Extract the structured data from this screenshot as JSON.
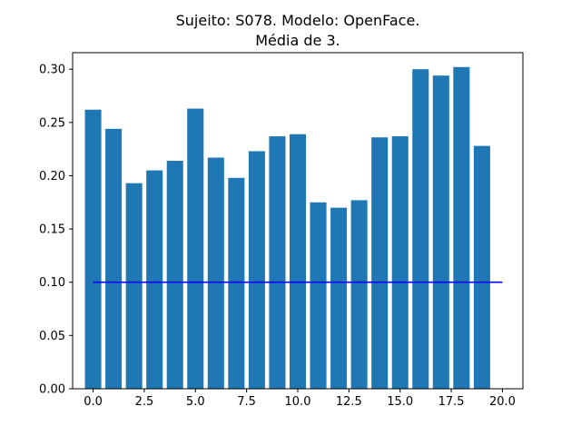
{
  "chart_data": {
    "type": "bar",
    "title": "Sujeito: S078. Modelo: OpenFace.",
    "subtitle": "Média de 3.",
    "xlabel": "",
    "ylabel": "",
    "x": [
      0,
      1,
      2,
      3,
      4,
      5,
      6,
      7,
      8,
      9,
      10,
      11,
      12,
      13,
      14,
      15,
      16,
      17,
      18,
      19
    ],
    "values": [
      0.262,
      0.244,
      0.193,
      0.205,
      0.214,
      0.263,
      0.217,
      0.198,
      0.223,
      0.237,
      0.239,
      0.175,
      0.17,
      0.177,
      0.236,
      0.237,
      0.3,
      0.294,
      0.302,
      0.228
    ],
    "bar_color": "#1f77b4",
    "xlim": [
      -1,
      21
    ],
    "ylim": [
      0,
      0.3155
    ],
    "xticks": [
      "0.0",
      "2.5",
      "5.0",
      "7.5",
      "10.0",
      "12.5",
      "15.0",
      "17.5",
      "20.0"
    ],
    "xtick_values": [
      0,
      2.5,
      5,
      7.5,
      10,
      12.5,
      15,
      17.5,
      20
    ],
    "yticks": [
      "0.00",
      "0.05",
      "0.10",
      "0.15",
      "0.20",
      "0.25",
      "0.30"
    ],
    "ytick_values": [
      0,
      0.05,
      0.1,
      0.15,
      0.2,
      0.25,
      0.3
    ],
    "reference_line": {
      "y": 0.1,
      "x_start": 0,
      "x_end": 20,
      "color": "#0000ff"
    },
    "grid": false,
    "legend": "none"
  }
}
